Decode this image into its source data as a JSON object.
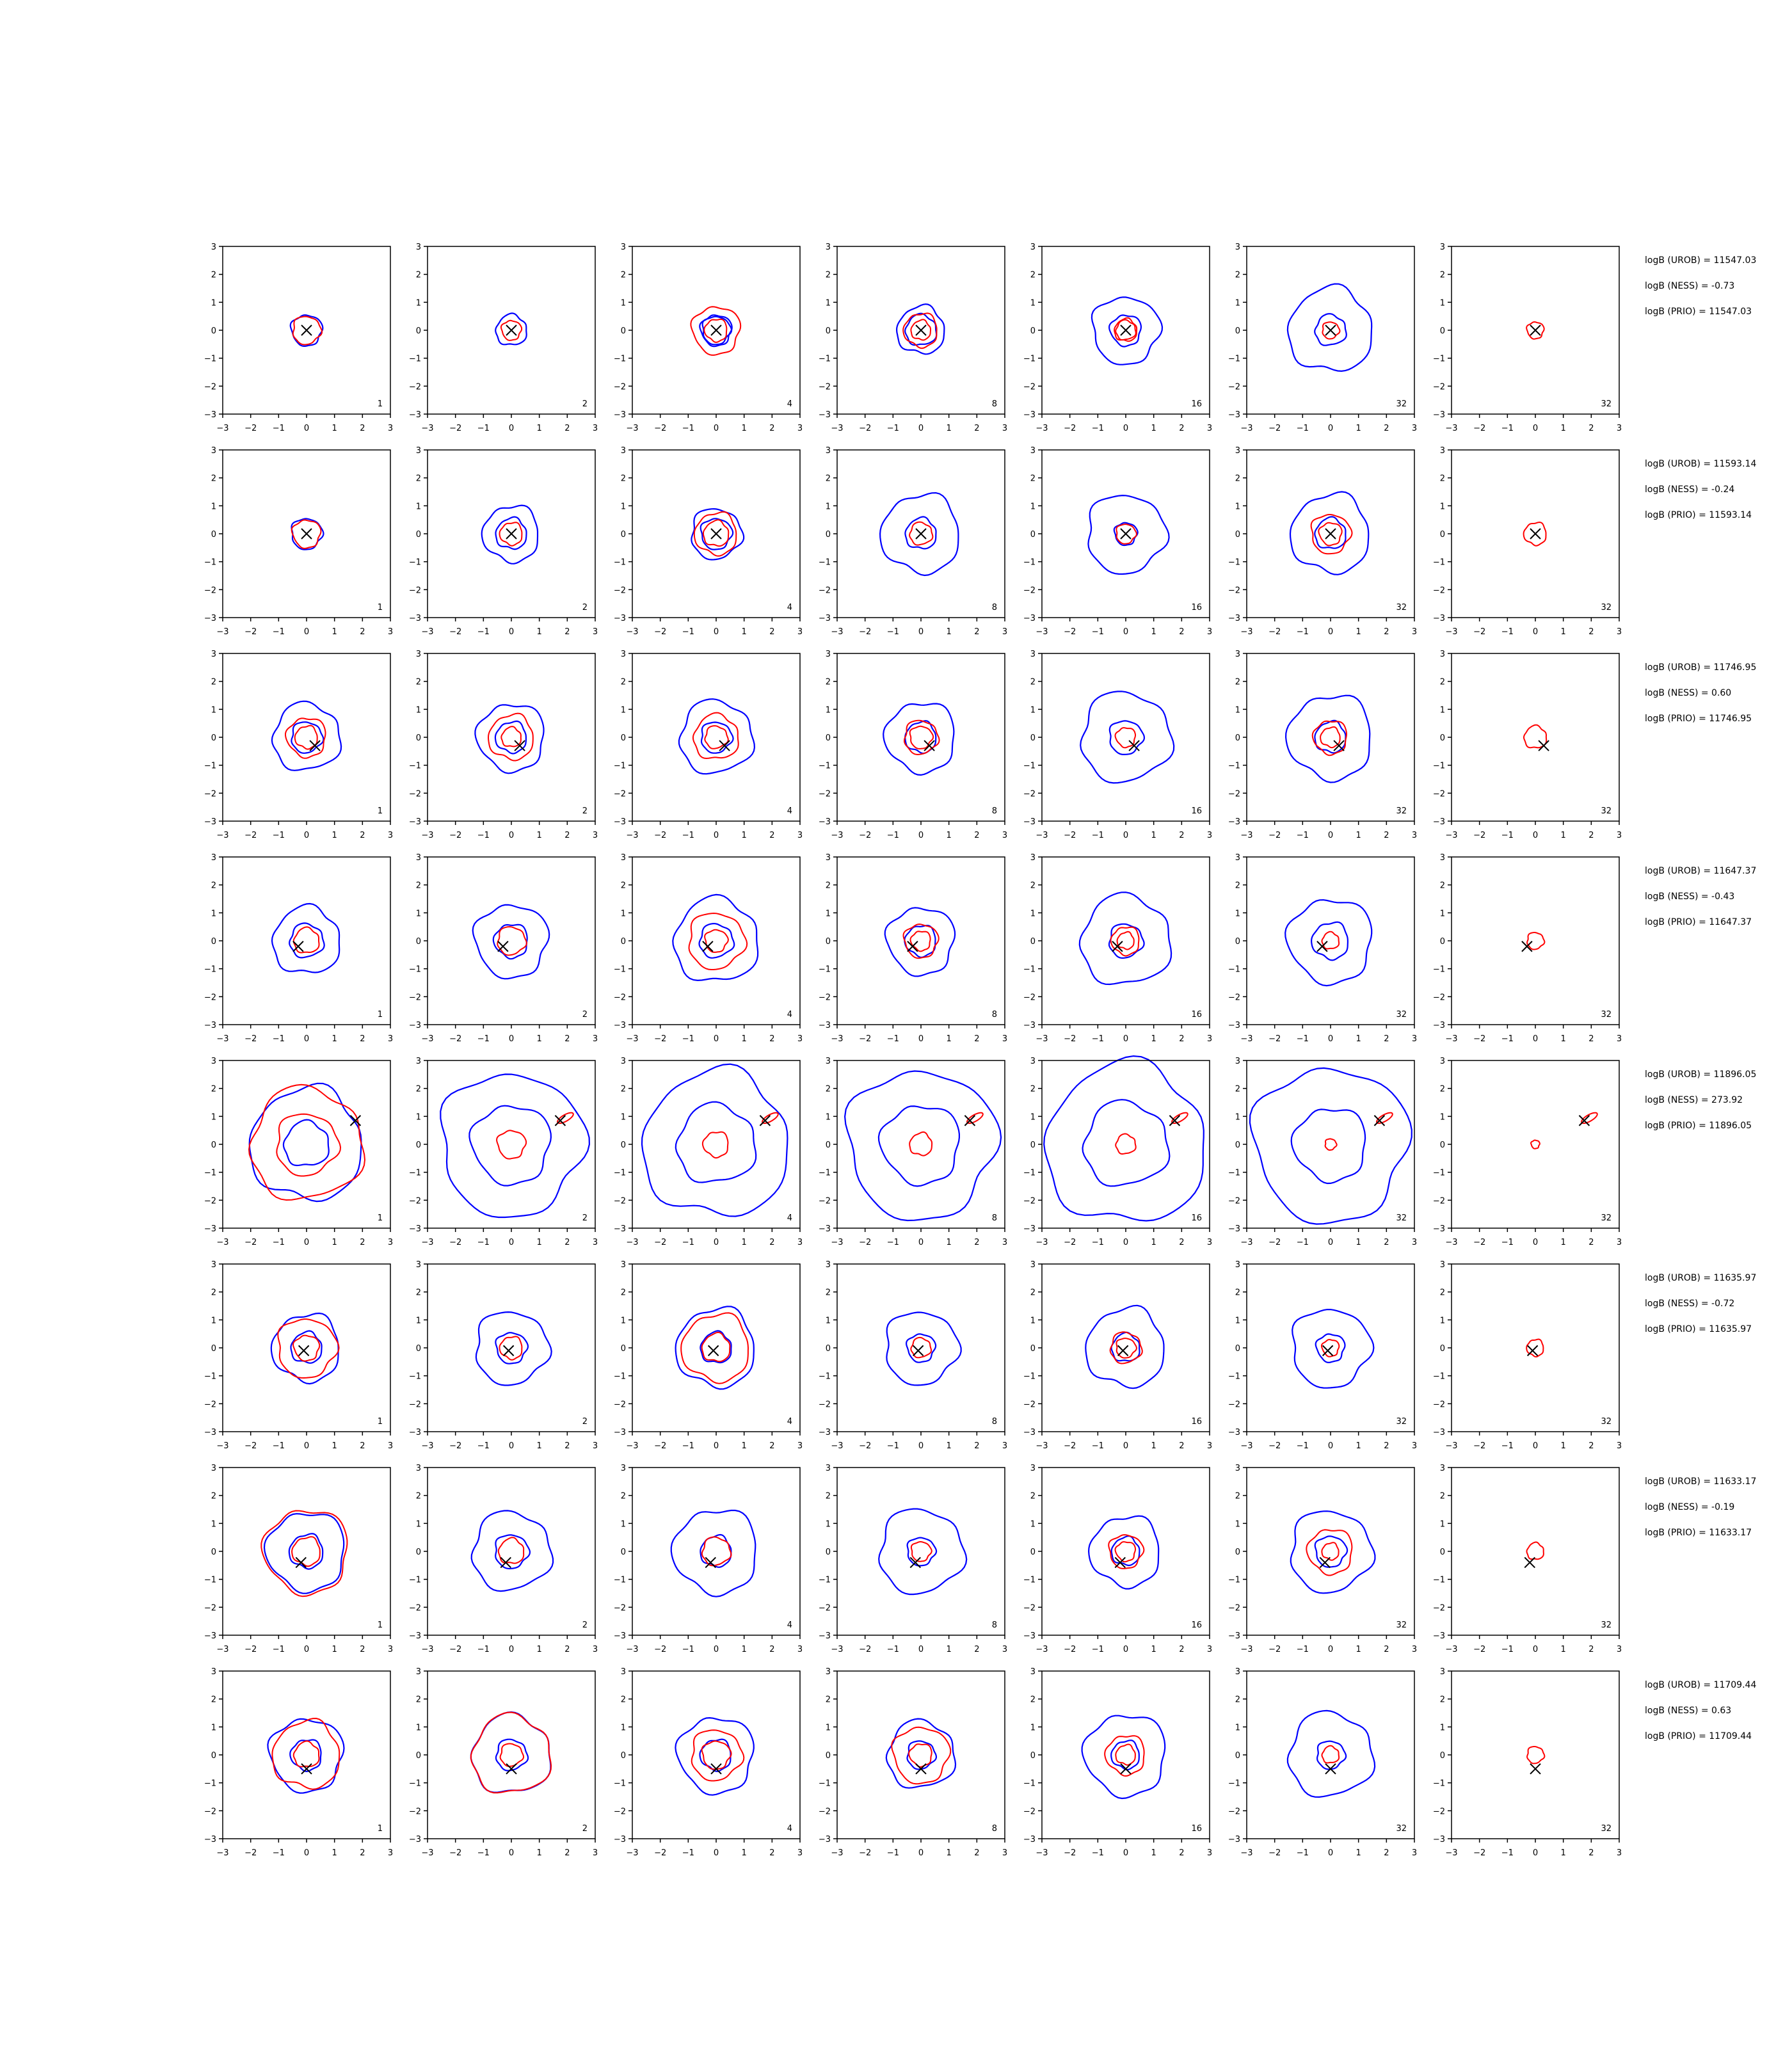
{
  "chart_data": {
    "type": "contour-grid",
    "x_range": [
      -3,
      3
    ],
    "y_range": [
      -3,
      3
    ],
    "xticks": [
      "−3",
      "−2",
      "−1",
      "0",
      "1",
      "2",
      "3"
    ],
    "yticks": [
      "3",
      "2",
      "1",
      "0",
      "−1",
      "−2",
      "−3"
    ],
    "column_labels": [
      "1",
      "2",
      "4",
      "8",
      "16",
      "32",
      "32"
    ],
    "colors": {
      "blue": "#0000ff",
      "red": "#ff0000",
      "marker": "#000000"
    },
    "rows": [
      {
        "marker": [
          0.0,
          0.0
        ],
        "blue": [
          [
            0.55,
            0.0
          ],
          [
            0.55,
            0.0
          ],
          [
            0.55,
            0.5
          ],
          [
            0.55,
            0.85
          ],
          [
            0.55,
            1.2
          ],
          [
            0.55,
            1.5
          ]
        ],
        "red": [
          [
            0.5,
            0.0
          ],
          [
            0.35,
            0.0
          ],
          [
            0.4,
            0.85
          ],
          [
            0.35,
            0.6
          ],
          [
            0.35,
            0.4
          ],
          [
            0.3,
            0.0
          ],
          [
            0.3,
            0.0
          ]
        ],
        "annotations": [
          "logB (UROB) = 11547.03",
          "logB (NESS) = -0.73",
          "logB (PRIO) = 11547.03"
        ]
      },
      {
        "marker": [
          0.0,
          0.0
        ],
        "blue": [
          [
            0.55,
            0.0
          ],
          [
            0.55,
            1.0
          ],
          [
            0.55,
            0.9
          ],
          [
            0.55,
            1.4
          ],
          [
            0.4,
            1.4
          ],
          [
            0.55,
            1.4
          ]
        ],
        "red": [
          [
            0.5,
            0.0
          ],
          [
            0.4,
            0.0
          ],
          [
            0.45,
            0.75
          ],
          [
            0.4,
            0.0
          ],
          [
            0.35,
            0.0
          ],
          [
            0.4,
            0.7
          ],
          [
            0.4,
            0.0
          ]
        ],
        "annotations": [
          "logB (UROB) = 11593.14",
          "logB (NESS) = -0.24",
          "logB (PRIO) = 11593.14"
        ]
      },
      {
        "marker": [
          0.3,
          -0.3
        ],
        "blue": [
          [
            0.55,
            1.2
          ],
          [
            0.55,
            1.2
          ],
          [
            0.55,
            1.3
          ],
          [
            0.55,
            1.25
          ],
          [
            0.6,
            1.6
          ],
          [
            0.55,
            1.5
          ]
        ],
        "red": [
          [
            0.4,
            0.7
          ],
          [
            0.35,
            0.8
          ],
          [
            0.4,
            0.8
          ],
          [
            0.4,
            0.6
          ],
          [
            0.35,
            0.0
          ],
          [
            0.35,
            0.6
          ],
          [
            0.4,
            0.0
          ]
        ],
        "annotations": [
          "logB (UROB) = 11746.95",
          "logB (NESS) = 0.60",
          "logB (PRIO) = 11746.95"
        ]
      },
      {
        "marker": [
          -0.3,
          -0.2
        ],
        "blue": [
          [
            0.6,
            1.2
          ],
          [
            0.6,
            1.3
          ],
          [
            0.6,
            1.5
          ],
          [
            0.55,
            1.2
          ],
          [
            0.6,
            1.6
          ],
          [
            0.65,
            1.5
          ]
        ],
        "red": [
          [
            0.45,
            0.0
          ],
          [
            0.5,
            0.0
          ],
          [
            0.4,
            1.0
          ],
          [
            0.35,
            0.6
          ],
          [
            0.3,
            0.5
          ],
          [
            0.3,
            0.0
          ],
          [
            0.3,
            0.0
          ]
        ],
        "annotations": [
          "logB (UROB) = 11647.37",
          "logB (NESS) = -0.43",
          "logB (PRIO) = 11647.37"
        ]
      },
      {
        "marker": [
          1.75,
          0.85
        ],
        "blue": [
          [
            0.8,
            2.0
          ],
          [
            1.4,
            2.55
          ],
          [
            1.4,
            2.6
          ],
          [
            1.4,
            2.65
          ],
          [
            1.5,
            2.85
          ],
          [
            1.3,
            2.75
          ]
        ],
        "red": [
          [
            1.1,
            2.0
          ],
          [
            0.5,
            0.0
          ],
          [
            0.45,
            0.0
          ],
          [
            0.4,
            0.0
          ],
          [
            0.35,
            0.0
          ],
          [
            0.2,
            0.0
          ],
          [
            0.15,
            0.0
          ]
        ],
        "annotations": [
          "logB (UROB) = 11896.05",
          "logB (NESS) = 273.92",
          "logB (PRIO) = 11896.05"
        ]
      },
      {
        "marker": [
          -0.1,
          -0.1
        ],
        "blue": [
          [
            0.55,
            1.2
          ],
          [
            0.55,
            1.3
          ],
          [
            0.55,
            1.4
          ],
          [
            0.5,
            1.3
          ],
          [
            0.5,
            1.4
          ],
          [
            0.5,
            1.4
          ]
        ],
        "red": [
          [
            0.45,
            1.05
          ],
          [
            0.4,
            0.0
          ],
          [
            0.5,
            1.2
          ],
          [
            0.35,
            0.0
          ],
          [
            0.35,
            0.55
          ],
          [
            0.3,
            0.0
          ],
          [
            0.3,
            0.0
          ]
        ],
        "annotations": [
          "logB (UROB) = 11635.97",
          "logB (NESS) = -0.72",
          "logB (PRIO) = 11635.97"
        ]
      },
      {
        "marker": [
          -0.2,
          -0.4
        ],
        "blue": [
          [
            0.6,
            1.4
          ],
          [
            0.6,
            1.4
          ],
          [
            0.55,
            1.5
          ],
          [
            0.5,
            1.5
          ],
          [
            0.5,
            1.25
          ],
          [
            0.55,
            1.45
          ]
        ],
        "red": [
          [
            0.5,
            1.5
          ],
          [
            0.45,
            0.0
          ],
          [
            0.5,
            0.0
          ],
          [
            0.35,
            0.0
          ],
          [
            0.35,
            0.6
          ],
          [
            0.3,
            0.8
          ],
          [
            0.3,
            0.0
          ]
        ],
        "annotations": [
          "logB (UROB) = 11633.17",
          "logB (NESS) = -0.19",
          "logB (PRIO) = 11633.17"
        ]
      },
      {
        "marker": [
          0.0,
          -0.5
        ],
        "blue": [
          [
            0.55,
            1.3
          ],
          [
            0.55,
            1.4
          ],
          [
            0.55,
            1.35
          ],
          [
            0.5,
            1.2
          ],
          [
            0.5,
            1.45
          ],
          [
            0.5,
            1.5
          ]
        ],
        "red": [
          [
            0.45,
            1.2
          ],
          [
            0.4,
            1.4
          ],
          [
            0.5,
            0.9
          ],
          [
            0.4,
            1.0
          ],
          [
            0.35,
            0.7
          ],
          [
            0.3,
            0.0
          ],
          [
            0.3,
            0.0
          ]
        ],
        "annotations": [
          "logB (UROB) = 11709.44",
          "logB (NESS) = 0.63",
          "logB (PRIO) = 11709.44"
        ]
      }
    ]
  }
}
